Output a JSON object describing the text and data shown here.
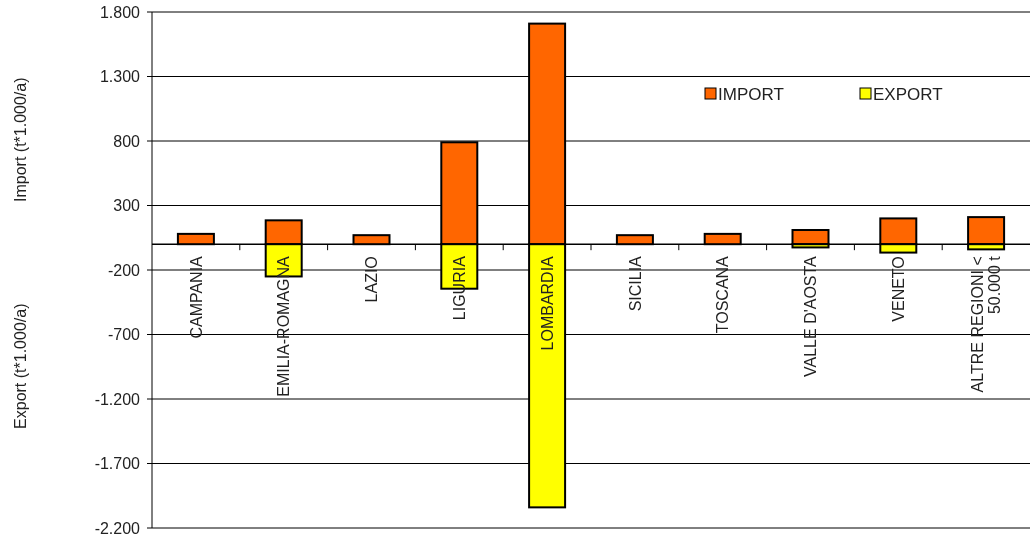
{
  "chart_data": {
    "type": "bar",
    "stacked": true,
    "ylabel": "Import (t*1.000/a)",
    "annotations": [
      "Export (t*1.000/a)"
    ],
    "categories": [
      "CAMPANIA",
      "EMILIA-ROMAGNA",
      "LAZIO",
      "LIGURIA",
      "LOMBARDIA",
      "SICILIA",
      "TOSCANA",
      "VALLE D'AOSTA",
      "VENETO",
      "ALTRE REGIONI < 50.000 t"
    ],
    "series": [
      {
        "name": "IMPORT",
        "color": "#ff6600",
        "values": [
          80,
          185,
          70,
          790,
          1710,
          70,
          80,
          110,
          200,
          210
        ]
      },
      {
        "name": "EXPORT",
        "color": "#ffff00",
        "values": [
          0,
          -250,
          0,
          -345,
          -2040,
          0,
          0,
          -25,
          -65,
          -40
        ]
      }
    ],
    "ylim": [
      -2200,
      1800
    ],
    "yticks": [
      {
        "value": 1800,
        "label": "1.800"
      },
      {
        "value": 1300,
        "label": "1.300"
      },
      800,
      300,
      -200,
      -700,
      {
        "value": -1200,
        "label": "-1.200"
      },
      {
        "value": -1700,
        "label": "-1.700"
      },
      {
        "value": -2200,
        "label": "-2.200"
      }
    ],
    "grid": "y",
    "legend": "top right"
  }
}
